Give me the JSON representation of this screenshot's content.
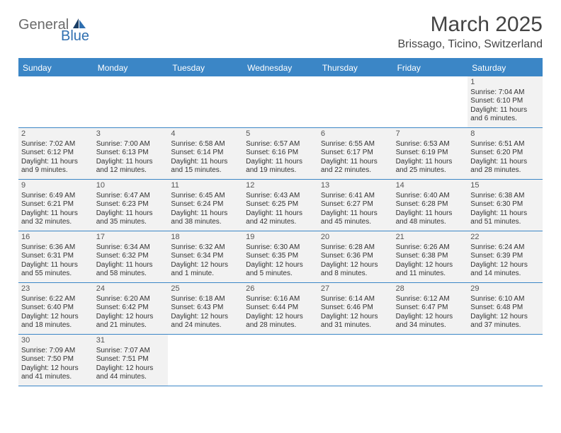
{
  "logo": {
    "part1": "General",
    "part2": "Blue"
  },
  "title": "March 2025",
  "location": "Brissago, Ticino, Switzerland",
  "colors": {
    "header_bg": "#3b86c6",
    "header_text": "#ffffff",
    "cell_filled_bg": "#f2f2f2",
    "border": "#3b86c6",
    "logo_gray": "#6b6b6b",
    "logo_blue": "#2f6fb0"
  },
  "day_names": [
    "Sunday",
    "Monday",
    "Tuesday",
    "Wednesday",
    "Thursday",
    "Friday",
    "Saturday"
  ],
  "weeks": [
    [
      null,
      null,
      null,
      null,
      null,
      null,
      {
        "n": "1",
        "sunrise": "Sunrise: 7:04 AM",
        "sunset": "Sunset: 6:10 PM",
        "daylight": "Daylight: 11 hours and 6 minutes."
      }
    ],
    [
      {
        "n": "2",
        "sunrise": "Sunrise: 7:02 AM",
        "sunset": "Sunset: 6:12 PM",
        "daylight": "Daylight: 11 hours and 9 minutes."
      },
      {
        "n": "3",
        "sunrise": "Sunrise: 7:00 AM",
        "sunset": "Sunset: 6:13 PM",
        "daylight": "Daylight: 11 hours and 12 minutes."
      },
      {
        "n": "4",
        "sunrise": "Sunrise: 6:58 AM",
        "sunset": "Sunset: 6:14 PM",
        "daylight": "Daylight: 11 hours and 15 minutes."
      },
      {
        "n": "5",
        "sunrise": "Sunrise: 6:57 AM",
        "sunset": "Sunset: 6:16 PM",
        "daylight": "Daylight: 11 hours and 19 minutes."
      },
      {
        "n": "6",
        "sunrise": "Sunrise: 6:55 AM",
        "sunset": "Sunset: 6:17 PM",
        "daylight": "Daylight: 11 hours and 22 minutes."
      },
      {
        "n": "7",
        "sunrise": "Sunrise: 6:53 AM",
        "sunset": "Sunset: 6:19 PM",
        "daylight": "Daylight: 11 hours and 25 minutes."
      },
      {
        "n": "8",
        "sunrise": "Sunrise: 6:51 AM",
        "sunset": "Sunset: 6:20 PM",
        "daylight": "Daylight: 11 hours and 28 minutes."
      }
    ],
    [
      {
        "n": "9",
        "sunrise": "Sunrise: 6:49 AM",
        "sunset": "Sunset: 6:21 PM",
        "daylight": "Daylight: 11 hours and 32 minutes."
      },
      {
        "n": "10",
        "sunrise": "Sunrise: 6:47 AM",
        "sunset": "Sunset: 6:23 PM",
        "daylight": "Daylight: 11 hours and 35 minutes."
      },
      {
        "n": "11",
        "sunrise": "Sunrise: 6:45 AM",
        "sunset": "Sunset: 6:24 PM",
        "daylight": "Daylight: 11 hours and 38 minutes."
      },
      {
        "n": "12",
        "sunrise": "Sunrise: 6:43 AM",
        "sunset": "Sunset: 6:25 PM",
        "daylight": "Daylight: 11 hours and 42 minutes."
      },
      {
        "n": "13",
        "sunrise": "Sunrise: 6:41 AM",
        "sunset": "Sunset: 6:27 PM",
        "daylight": "Daylight: 11 hours and 45 minutes."
      },
      {
        "n": "14",
        "sunrise": "Sunrise: 6:40 AM",
        "sunset": "Sunset: 6:28 PM",
        "daylight": "Daylight: 11 hours and 48 minutes."
      },
      {
        "n": "15",
        "sunrise": "Sunrise: 6:38 AM",
        "sunset": "Sunset: 6:30 PM",
        "daylight": "Daylight: 11 hours and 51 minutes."
      }
    ],
    [
      {
        "n": "16",
        "sunrise": "Sunrise: 6:36 AM",
        "sunset": "Sunset: 6:31 PM",
        "daylight": "Daylight: 11 hours and 55 minutes."
      },
      {
        "n": "17",
        "sunrise": "Sunrise: 6:34 AM",
        "sunset": "Sunset: 6:32 PM",
        "daylight": "Daylight: 11 hours and 58 minutes."
      },
      {
        "n": "18",
        "sunrise": "Sunrise: 6:32 AM",
        "sunset": "Sunset: 6:34 PM",
        "daylight": "Daylight: 12 hours and 1 minute."
      },
      {
        "n": "19",
        "sunrise": "Sunrise: 6:30 AM",
        "sunset": "Sunset: 6:35 PM",
        "daylight": "Daylight: 12 hours and 5 minutes."
      },
      {
        "n": "20",
        "sunrise": "Sunrise: 6:28 AM",
        "sunset": "Sunset: 6:36 PM",
        "daylight": "Daylight: 12 hours and 8 minutes."
      },
      {
        "n": "21",
        "sunrise": "Sunrise: 6:26 AM",
        "sunset": "Sunset: 6:38 PM",
        "daylight": "Daylight: 12 hours and 11 minutes."
      },
      {
        "n": "22",
        "sunrise": "Sunrise: 6:24 AM",
        "sunset": "Sunset: 6:39 PM",
        "daylight": "Daylight: 12 hours and 14 minutes."
      }
    ],
    [
      {
        "n": "23",
        "sunrise": "Sunrise: 6:22 AM",
        "sunset": "Sunset: 6:40 PM",
        "daylight": "Daylight: 12 hours and 18 minutes."
      },
      {
        "n": "24",
        "sunrise": "Sunrise: 6:20 AM",
        "sunset": "Sunset: 6:42 PM",
        "daylight": "Daylight: 12 hours and 21 minutes."
      },
      {
        "n": "25",
        "sunrise": "Sunrise: 6:18 AM",
        "sunset": "Sunset: 6:43 PM",
        "daylight": "Daylight: 12 hours and 24 minutes."
      },
      {
        "n": "26",
        "sunrise": "Sunrise: 6:16 AM",
        "sunset": "Sunset: 6:44 PM",
        "daylight": "Daylight: 12 hours and 28 minutes."
      },
      {
        "n": "27",
        "sunrise": "Sunrise: 6:14 AM",
        "sunset": "Sunset: 6:46 PM",
        "daylight": "Daylight: 12 hours and 31 minutes."
      },
      {
        "n": "28",
        "sunrise": "Sunrise: 6:12 AM",
        "sunset": "Sunset: 6:47 PM",
        "daylight": "Daylight: 12 hours and 34 minutes."
      },
      {
        "n": "29",
        "sunrise": "Sunrise: 6:10 AM",
        "sunset": "Sunset: 6:48 PM",
        "daylight": "Daylight: 12 hours and 37 minutes."
      }
    ],
    [
      {
        "n": "30",
        "sunrise": "Sunrise: 7:09 AM",
        "sunset": "Sunset: 7:50 PM",
        "daylight": "Daylight: 12 hours and 41 minutes."
      },
      {
        "n": "31",
        "sunrise": "Sunrise: 7:07 AM",
        "sunset": "Sunset: 7:51 PM",
        "daylight": "Daylight: 12 hours and 44 minutes."
      },
      null,
      null,
      null,
      null,
      null
    ]
  ]
}
